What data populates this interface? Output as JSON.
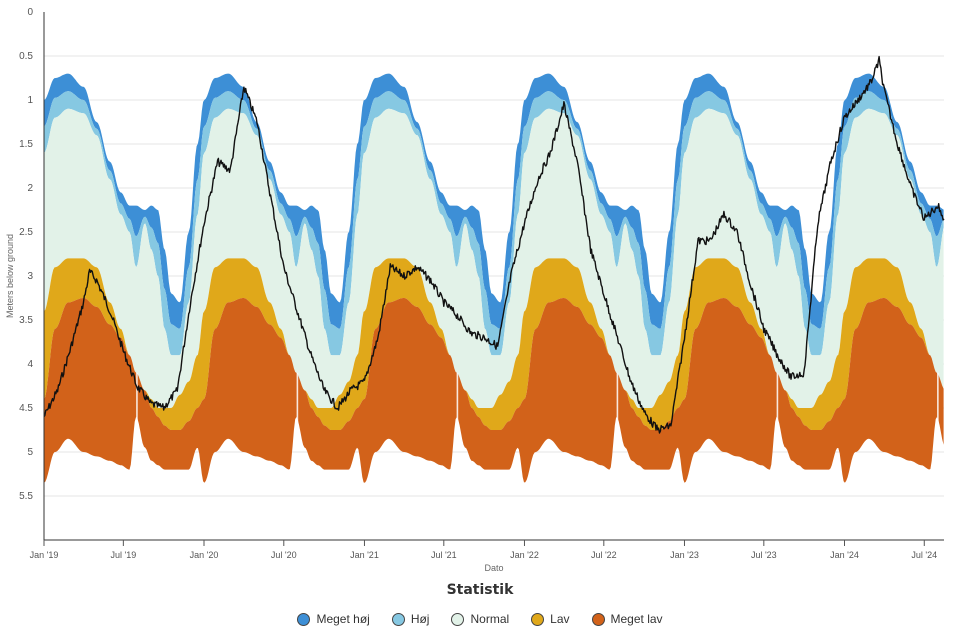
{
  "chart_data": {
    "type": "area",
    "title": "",
    "xlabel": "Dato",
    "ylabel": "Meters below ground",
    "ylim": [
      0,
      6
    ],
    "y_inverted": true,
    "y_ticks": [
      "0",
      "0.5",
      "1",
      "1.5",
      "2",
      "2.5",
      "3",
      "3.5",
      "4",
      "4.5",
      "5",
      "5.5"
    ],
    "x_ticks": [
      "Jan '19",
      "Jul '19",
      "Jan '20",
      "Jul '20",
      "Jan '21",
      "Jul '21",
      "Jan '22",
      "Jul '22",
      "Jan '23",
      "Jul '23",
      "Jan '24",
      "Jul '24"
    ],
    "x_range": [
      "2019-01-01",
      "2024-08-15"
    ],
    "grid": "horizontal",
    "legend_title": "Statistik",
    "legend_position": "bottom",
    "bands": [
      {
        "name": "Meget høj",
        "color": "#3d8fd6"
      },
      {
        "name": "Høj",
        "color": "#86c8e2"
      },
      {
        "name": "Normal",
        "color": "#e2f2e8"
      },
      {
        "name": "Lav",
        "color": "#e0a81a"
      },
      {
        "name": "Meget lav",
        "color": "#d2621a"
      }
    ],
    "band_boundaries_by_day_of_year": {
      "day": [
        0,
        25,
        55,
        90,
        120,
        150,
        175,
        195,
        210,
        230,
        245,
        260,
        275,
        290,
        310,
        330,
        350,
        365
      ],
      "top": [
        1.0,
        0.75,
        0.7,
        0.85,
        1.25,
        1.7,
        2.05,
        2.2,
        2.2,
        2.25,
        2.2,
        2.25,
        2.7,
        3.2,
        3.3,
        2.5,
        1.5,
        1.0
      ],
      "high_normal": [
        1.6,
        1.2,
        1.1,
        1.15,
        1.4,
        1.9,
        2.3,
        2.5,
        2.9,
        2.4,
        2.7,
        3.0,
        3.6,
        3.9,
        3.9,
        3.3,
        2.3,
        1.6
      ],
      "normal_low": [
        3.4,
        2.9,
        2.8,
        2.8,
        2.9,
        3.3,
        3.6,
        3.9,
        4.1,
        4.3,
        4.4,
        4.5,
        4.5,
        4.5,
        4.35,
        4.2,
        3.9,
        3.4
      ],
      "low_verylow": [
        4.4,
        3.6,
        3.3,
        3.25,
        3.35,
        3.55,
        3.7,
        3.9,
        4.1,
        4.3,
        4.5,
        4.6,
        4.7,
        4.75,
        4.75,
        4.65,
        4.5,
        4.4
      ],
      "bottom": [
        5.35,
        5.0,
        4.85,
        5.0,
        5.05,
        5.1,
        5.15,
        5.2,
        4.6,
        4.95,
        5.1,
        5.15,
        5.2,
        5.2,
        5.2,
        5.2,
        4.95,
        5.35
      ]
    },
    "series": [
      {
        "name": "",
        "color": "#111111",
        "points": [
          [
            "2019-01-01",
            4.6
          ],
          [
            "2019-02-01",
            4.3
          ],
          [
            "2019-03-01",
            3.85
          ],
          [
            "2019-04-01",
            3.3
          ],
          [
            "2019-04-15",
            2.95
          ],
          [
            "2019-05-01",
            3.05
          ],
          [
            "2019-06-01",
            3.4
          ],
          [
            "2019-07-01",
            3.85
          ],
          [
            "2019-08-01",
            4.25
          ],
          [
            "2019-09-01",
            4.45
          ],
          [
            "2019-10-01",
            4.5
          ],
          [
            "2019-11-01",
            4.3
          ],
          [
            "2019-12-01",
            3.3
          ],
          [
            "2020-01-01",
            2.4
          ],
          [
            "2020-02-01",
            1.7
          ],
          [
            "2020-03-01",
            1.8
          ],
          [
            "2020-04-01",
            0.85
          ],
          [
            "2020-05-01",
            1.25
          ],
          [
            "2020-06-01",
            2.1
          ],
          [
            "2020-07-01",
            2.9
          ],
          [
            "2020-08-01",
            3.4
          ],
          [
            "2020-09-01",
            3.9
          ],
          [
            "2020-10-01",
            4.3
          ],
          [
            "2020-11-01",
            4.5
          ],
          [
            "2020-12-01",
            4.3
          ],
          [
            "2021-01-01",
            4.2
          ],
          [
            "2021-02-01",
            3.7
          ],
          [
            "2021-03-01",
            2.9
          ],
          [
            "2021-04-01",
            3.0
          ],
          [
            "2021-05-01",
            2.9
          ],
          [
            "2021-06-01",
            3.05
          ],
          [
            "2021-07-01",
            3.3
          ],
          [
            "2021-08-01",
            3.45
          ],
          [
            "2021-09-01",
            3.65
          ],
          [
            "2021-10-01",
            3.7
          ],
          [
            "2021-11-01",
            3.8
          ],
          [
            "2021-12-01",
            3.0
          ],
          [
            "2022-01-01",
            2.4
          ],
          [
            "2022-02-01",
            1.9
          ],
          [
            "2022-03-01",
            1.6
          ],
          [
            "2022-04-01",
            1.05
          ],
          [
            "2022-05-01",
            1.7
          ],
          [
            "2022-06-01",
            2.7
          ],
          [
            "2022-07-01",
            3.2
          ],
          [
            "2022-08-01",
            3.7
          ],
          [
            "2022-09-01",
            4.2
          ],
          [
            "2022-10-01",
            4.55
          ],
          [
            "2022-11-01",
            4.75
          ],
          [
            "2022-12-01",
            4.7
          ],
          [
            "2023-01-01",
            3.7
          ],
          [
            "2023-02-01",
            2.6
          ],
          [
            "2023-03-01",
            2.6
          ],
          [
            "2023-04-01",
            2.3
          ],
          [
            "2023-05-01",
            2.5
          ],
          [
            "2023-06-01",
            3.1
          ],
          [
            "2023-07-01",
            3.6
          ],
          [
            "2023-08-01",
            3.9
          ],
          [
            "2023-09-01",
            4.15
          ],
          [
            "2023-10-01",
            4.1
          ],
          [
            "2023-11-01",
            2.4
          ],
          [
            "2023-12-01",
            1.7
          ],
          [
            "2024-01-01",
            1.2
          ],
          [
            "2024-02-01",
            1.0
          ],
          [
            "2024-03-01",
            0.8
          ],
          [
            "2024-03-20",
            0.55
          ],
          [
            "2024-04-01",
            0.9
          ],
          [
            "2024-05-01",
            1.5
          ],
          [
            "2024-06-01",
            2.0
          ],
          [
            "2024-07-01",
            2.35
          ],
          [
            "2024-08-01",
            2.2
          ],
          [
            "2024-08-15",
            2.35
          ]
        ]
      }
    ]
  }
}
